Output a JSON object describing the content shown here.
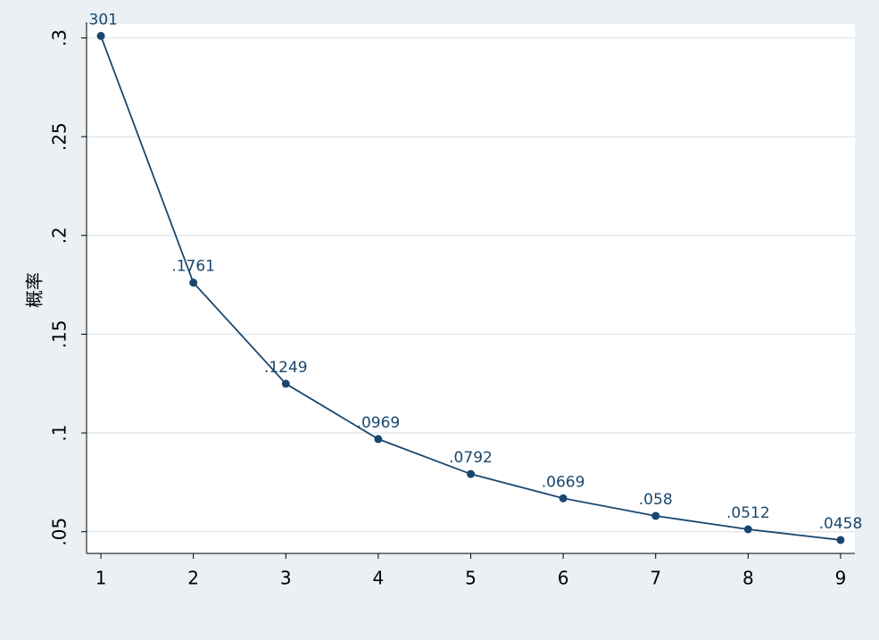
{
  "chart_data": {
    "type": "line",
    "y_label": "概率",
    "x": [
      1,
      2,
      3,
      4,
      5,
      6,
      7,
      8,
      9
    ],
    "series": [
      {
        "color": "#1a476f",
        "values": [
          0.301,
          0.1761,
          0.1249,
          0.0969,
          0.0792,
          0.0669,
          0.058,
          0.0512,
          0.0458
        ],
        "value_labels": [
          ".301",
          ".1761",
          ".1249",
          ".0969",
          ".0792",
          ".0669",
          ".058",
          ".0512",
          ".0458"
        ]
      }
    ],
    "xlim": [
      0.845,
      9.155
    ],
    "xticks": [
      1,
      2,
      3,
      4,
      5,
      6,
      7,
      8,
      9
    ],
    "ylim": [
      0.039,
      0.307
    ],
    "yticks": [
      {
        "value": 0.05,
        "label": ".05"
      },
      {
        "value": 0.1,
        "label": ".1"
      },
      {
        "value": 0.15,
        "label": ".15"
      },
      {
        "value": 0.2,
        "label": ".2"
      },
      {
        "value": 0.25,
        "label": ".25"
      },
      {
        "value": 0.3,
        "label": ".3"
      }
    ],
    "grid": true
  }
}
